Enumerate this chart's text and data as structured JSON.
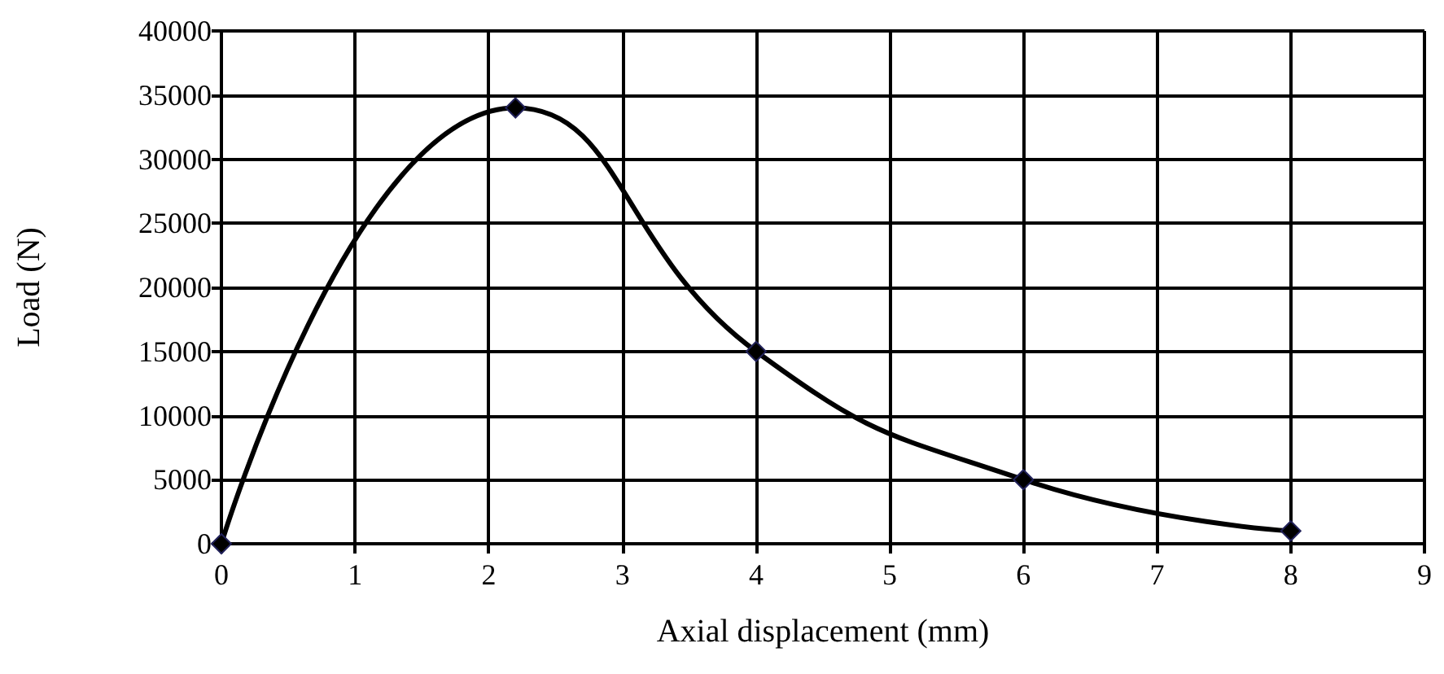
{
  "chart_data": {
    "type": "line",
    "xlabel": "Axial displacement (mm)",
    "ylabel": "Load (N)",
    "x": [
      0,
      2.2,
      4,
      6,
      8
    ],
    "series": [
      {
        "color": "#000000",
        "values": [
          0,
          34000,
          15000,
          5000,
          1000
        ]
      }
    ],
    "xlim": [
      0,
      9
    ],
    "xticks": [
      0,
      1,
      2,
      3,
      4,
      5,
      6,
      7,
      8,
      9
    ],
    "ylim": [
      0,
      40000
    ],
    "yticks": [
      0,
      5000,
      10000,
      15000,
      20000,
      25000,
      30000,
      35000,
      40000
    ],
    "grid": true,
    "marker": "diamond",
    "line_style": "solid"
  }
}
